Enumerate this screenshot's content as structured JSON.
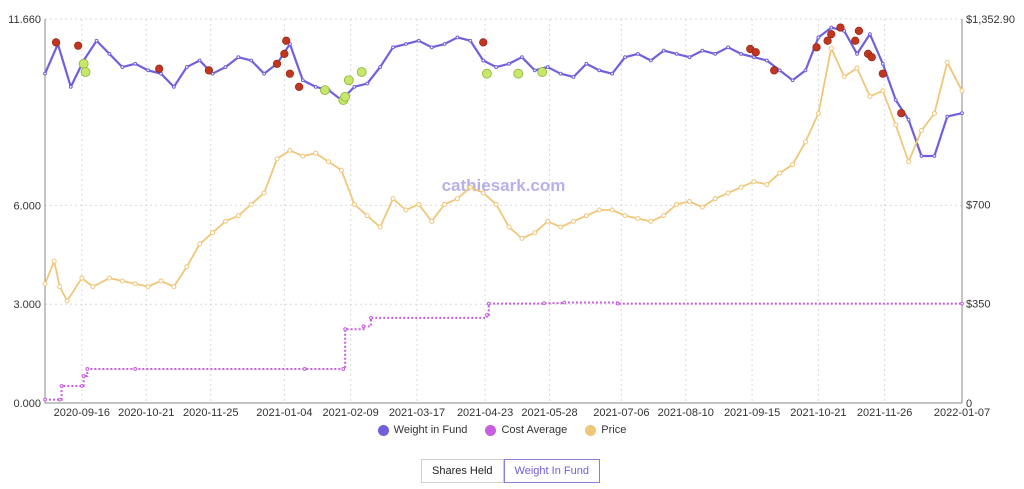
{
  "chart_data": {
    "type": "line",
    "watermark": "cathiesark.com",
    "left_axis": {
      "min": 0,
      "max": 11.66,
      "ticks": [
        "11.660",
        "6.000",
        "3.000",
        "0.000"
      ],
      "tick_values": [
        11.66,
        6.0,
        3.0,
        0.0
      ]
    },
    "right_axis": {
      "min": 0,
      "max": 1352.9,
      "ticks": [
        "$1,352.90",
        "$700",
        "$350",
        "0"
      ],
      "tick_values": [
        1352.9,
        700,
        350,
        0
      ]
    },
    "x_ticks": [
      "2020-09-16",
      "2020-10-21",
      "2020-11-25",
      "2021-01-04",
      "2021-02-09",
      "2021-03-17",
      "2021-04-23",
      "2021-05-28",
      "2021-07-06",
      "2021-08-10",
      "2021-09-15",
      "2021-10-21",
      "2021-11-26",
      "2022-01-07"
    ],
    "x_range": [
      "2020-08-27",
      "2022-01-07"
    ],
    "grid": true,
    "legend_position": "bottom",
    "series": [
      {
        "name": "Weight in Fund",
        "axis": "left",
        "color": "#7060dc",
        "x": [
          "2020-08-27",
          "2020-09-03",
          "2020-09-10",
          "2020-09-17",
          "2020-09-24",
          "2020-10-01",
          "2020-10-08",
          "2020-10-15",
          "2020-10-22",
          "2020-10-29",
          "2020-11-05",
          "2020-11-12",
          "2020-11-19",
          "2020-11-26",
          "2020-12-03",
          "2020-12-10",
          "2020-12-17",
          "2020-12-24",
          "2020-12-31",
          "2021-01-07",
          "2021-01-14",
          "2021-01-21",
          "2021-01-28",
          "2021-02-04",
          "2021-02-11",
          "2021-02-18",
          "2021-02-25",
          "2021-03-04",
          "2021-03-11",
          "2021-03-18",
          "2021-03-25",
          "2021-04-01",
          "2021-04-08",
          "2021-04-15",
          "2021-04-22",
          "2021-04-29",
          "2021-05-06",
          "2021-05-13",
          "2021-05-20",
          "2021-05-27",
          "2021-06-03",
          "2021-06-10",
          "2021-06-17",
          "2021-06-24",
          "2021-07-01",
          "2021-07-08",
          "2021-07-15",
          "2021-07-22",
          "2021-07-29",
          "2021-08-05",
          "2021-08-12",
          "2021-08-19",
          "2021-08-26",
          "2021-09-02",
          "2021-09-09",
          "2021-09-16",
          "2021-09-23",
          "2021-09-30",
          "2021-10-07",
          "2021-10-14",
          "2021-10-21",
          "2021-10-28",
          "2021-11-04",
          "2021-11-11",
          "2021-11-18",
          "2021-11-25",
          "2021-12-02",
          "2021-12-09",
          "2021-12-16",
          "2021-12-23",
          "2021-12-30",
          "2022-01-07"
        ],
        "values": [
          10.0,
          10.9,
          9.6,
          10.4,
          11.0,
          10.6,
          10.2,
          10.3,
          10.1,
          10.0,
          9.6,
          10.2,
          10.4,
          10.0,
          10.2,
          10.5,
          10.4,
          10.0,
          10.3,
          10.9,
          9.8,
          9.6,
          9.5,
          9.2,
          9.6,
          9.7,
          10.2,
          10.8,
          10.9,
          11.0,
          10.8,
          10.9,
          11.1,
          11.0,
          10.4,
          10.2,
          10.3,
          10.5,
          10.1,
          10.2,
          10.0,
          9.9,
          10.3,
          10.1,
          10.0,
          10.5,
          10.6,
          10.4,
          10.7,
          10.6,
          10.5,
          10.7,
          10.6,
          10.8,
          10.6,
          10.5,
          10.4,
          10.1,
          9.8,
          10.1,
          11.1,
          11.4,
          11.3,
          10.6,
          11.2,
          10.3,
          9.2,
          8.6,
          7.5,
          7.5,
          8.7,
          8.8
        ]
      },
      {
        "name": "Cost Average",
        "axis": "right",
        "color": "#c85ee0",
        "x": [
          "2020-08-27",
          "2020-09-04",
          "2020-09-05",
          "2020-09-16",
          "2020-09-17",
          "2020-09-19",
          "2020-10-15",
          "2021-01-15",
          "2021-02-05",
          "2021-02-06",
          "2021-02-16",
          "2021-02-20",
          "2021-04-24",
          "2021-04-25",
          "2021-05-25",
          "2021-06-05",
          "2021-07-04",
          "2022-01-07"
        ],
        "values": [
          12,
          12,
          60,
          60,
          95,
          120,
          120,
          120,
          120,
          260,
          270,
          300,
          310,
          350,
          352,
          354,
          350,
          350
        ]
      },
      {
        "name": "Price",
        "axis": "right",
        "color": "#f0c77a",
        "x": [
          "2020-08-27",
          "2020-09-01",
          "2020-09-04",
          "2020-09-08",
          "2020-09-16",
          "2020-09-22",
          "2020-10-01",
          "2020-10-08",
          "2020-10-15",
          "2020-10-22",
          "2020-10-29",
          "2020-11-05",
          "2020-11-12",
          "2020-11-19",
          "2020-11-26",
          "2020-12-03",
          "2020-12-10",
          "2020-12-17",
          "2020-12-24",
          "2020-12-31",
          "2021-01-07",
          "2021-01-14",
          "2021-01-21",
          "2021-01-28",
          "2021-02-04",
          "2021-02-11",
          "2021-02-18",
          "2021-02-25",
          "2021-03-04",
          "2021-03-11",
          "2021-03-18",
          "2021-03-25",
          "2021-04-01",
          "2021-04-08",
          "2021-04-15",
          "2021-04-22",
          "2021-04-29",
          "2021-05-06",
          "2021-05-13",
          "2021-05-20",
          "2021-05-27",
          "2021-06-03",
          "2021-06-10",
          "2021-06-17",
          "2021-06-24",
          "2021-07-01",
          "2021-07-08",
          "2021-07-15",
          "2021-07-22",
          "2021-07-29",
          "2021-08-05",
          "2021-08-12",
          "2021-08-19",
          "2021-08-26",
          "2021-09-02",
          "2021-09-09",
          "2021-09-16",
          "2021-09-23",
          "2021-09-30",
          "2021-10-07",
          "2021-10-14",
          "2021-10-21",
          "2021-10-28",
          "2021-11-04",
          "2021-11-11",
          "2021-11-18",
          "2021-11-25",
          "2021-12-02",
          "2021-12-09",
          "2021-12-16",
          "2021-12-23",
          "2021-12-30",
          "2022-01-07"
        ],
        "values": [
          420,
          500,
          410,
          360,
          440,
          410,
          440,
          430,
          420,
          410,
          430,
          410,
          480,
          560,
          600,
          640,
          660,
          700,
          740,
          860,
          890,
          870,
          880,
          850,
          820,
          700,
          660,
          620,
          720,
          680,
          700,
          640,
          700,
          720,
          760,
          740,
          700,
          620,
          580,
          600,
          640,
          620,
          640,
          660,
          680,
          680,
          660,
          650,
          640,
          660,
          700,
          710,
          690,
          720,
          740,
          760,
          780,
          770,
          810,
          840,
          920,
          1020,
          1250,
          1150,
          1180,
          1080,
          1100,
          980,
          850,
          960,
          1020,
          1200,
          1100
        ]
      }
    ],
    "markers": {
      "buy_color": "#c6e86a",
      "sell_color": "#c2361f",
      "buy": [
        {
          "x": "2020-09-17",
          "y": 10.3
        },
        {
          "x": "2020-09-18",
          "y": 10.05
        },
        {
          "x": "2021-01-26",
          "y": 9.5
        },
        {
          "x": "2021-02-05",
          "y": 9.2
        },
        {
          "x": "2021-02-06",
          "y": 9.3
        },
        {
          "x": "2021-02-08",
          "y": 9.8
        },
        {
          "x": "2021-02-15",
          "y": 10.05
        },
        {
          "x": "2021-04-24",
          "y": 10.0
        },
        {
          "x": "2021-05-11",
          "y": 10.0
        },
        {
          "x": "2021-05-24",
          "y": 10.05
        }
      ],
      "sell": [
        {
          "x": "2020-09-02",
          "y": 10.95
        },
        {
          "x": "2020-09-14",
          "y": 10.85
        },
        {
          "x": "2020-10-28",
          "y": 10.15
        },
        {
          "x": "2020-11-24",
          "y": 10.1
        },
        {
          "x": "2020-12-31",
          "y": 10.3
        },
        {
          "x": "2021-01-04",
          "y": 10.6
        },
        {
          "x": "2021-01-05",
          "y": 11.0
        },
        {
          "x": "2021-01-07",
          "y": 10.0
        },
        {
          "x": "2021-01-12",
          "y": 9.6
        },
        {
          "x": "2021-04-22",
          "y": 10.95
        },
        {
          "x": "2021-09-14",
          "y": 10.75
        },
        {
          "x": "2021-09-17",
          "y": 10.65
        },
        {
          "x": "2021-09-27",
          "y": 10.1
        },
        {
          "x": "2021-10-20",
          "y": 10.8
        },
        {
          "x": "2021-10-26",
          "y": 11.0
        },
        {
          "x": "2021-10-28",
          "y": 11.2
        },
        {
          "x": "2021-11-02",
          "y": 11.4
        },
        {
          "x": "2021-11-10",
          "y": 11.0
        },
        {
          "x": "2021-11-12",
          "y": 11.3
        },
        {
          "x": "2021-11-17",
          "y": 10.6
        },
        {
          "x": "2021-11-19",
          "y": 10.5
        },
        {
          "x": "2021-11-25",
          "y": 10.0
        },
        {
          "x": "2021-12-05",
          "y": 8.8
        }
      ]
    }
  },
  "legend": [
    {
      "label": "Weight in Fund",
      "color": "#7060dc"
    },
    {
      "label": "Cost Average",
      "color": "#c85ee0"
    },
    {
      "label": "Price",
      "color": "#f0c77a"
    }
  ],
  "toggle": {
    "shares_label": "Shares Held",
    "weight_label": "Weight In Fund"
  }
}
